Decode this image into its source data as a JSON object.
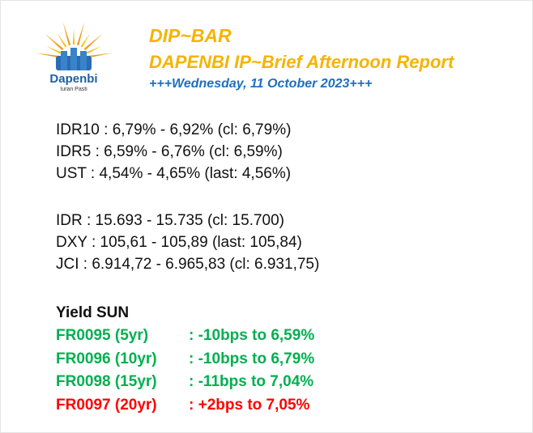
{
  "logo": {
    "name": "Dapenbi",
    "tagline": "Iuran Pasti"
  },
  "header": {
    "title": "DIP~BAR",
    "subtitle": "DAPENBI IP~Brief Afternoon Report",
    "date": "+++Wednesday, 11 October 2023+++"
  },
  "bonds": [
    "IDR10 : 6,79% - 6,92% (cl: 6,79%)",
    "IDR5 : 6,59% - 6,76% (cl: 6,59%)",
    "UST : 4,54% - 4,65% (last: 4,56%)"
  ],
  "markets": [
    "IDR : 15.693 - 15.735 (cl: 15.700)",
    "DXY : 105,61 - 105,89 (last: 105,84)",
    "JCI : 6.914,72 - 6.965,83 (cl: 6.931,75)"
  ],
  "yield": {
    "title": "Yield SUN",
    "rows": [
      {
        "label": "FR0095 (5yr)",
        "detail": ": -10bps to 6,59%",
        "color": "#00b050"
      },
      {
        "label": "FR0096 (10yr)",
        "detail": ": -10bps to 6,79%",
        "color": "#00b050"
      },
      {
        "label": "FR0098 (15yr)",
        "detail": ": -11bps to 7,04%",
        "color": "#00b050"
      },
      {
        "label": "FR0097 (20yr)",
        "detail": ": +2bps to 7,05%",
        "color": "#ff0000"
      }
    ]
  }
}
